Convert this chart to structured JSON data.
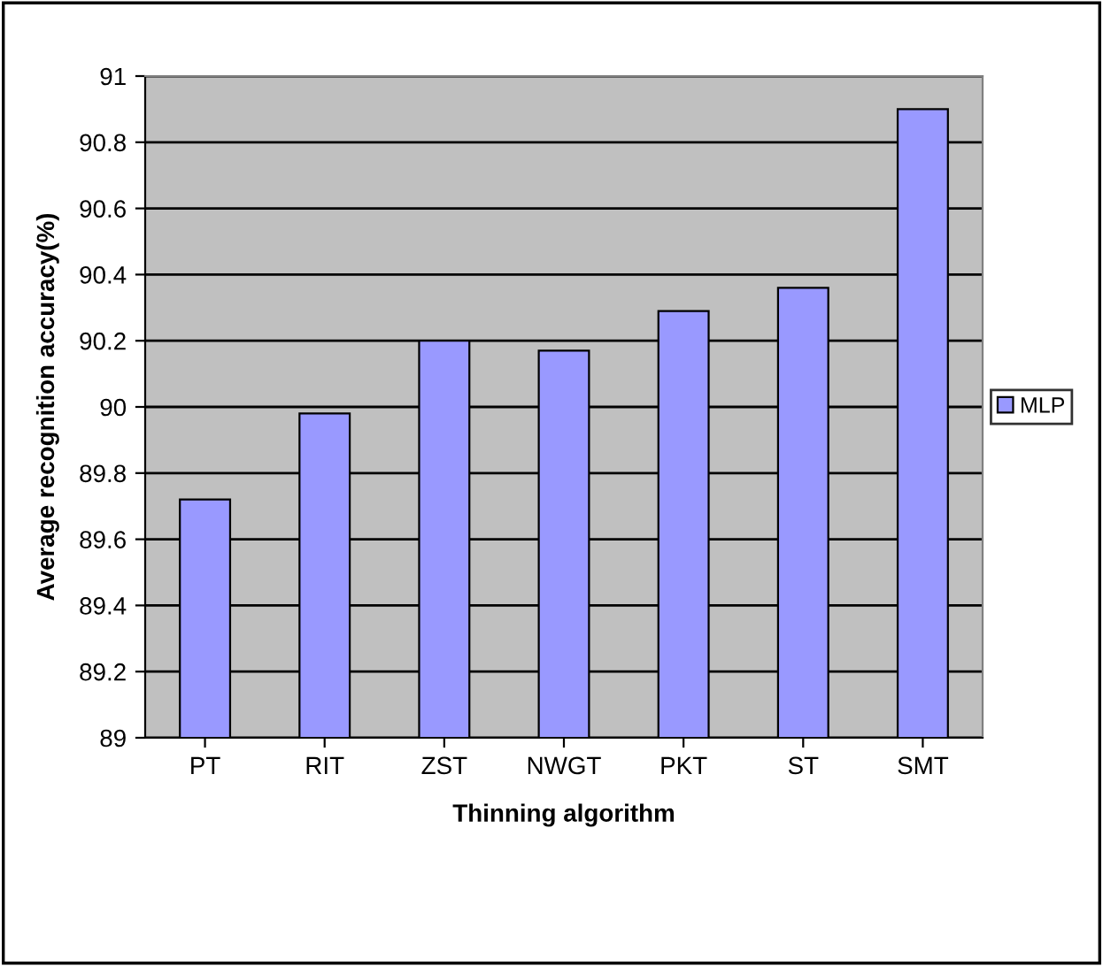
{
  "chart_data": {
    "type": "bar",
    "xlabel": "Thinning algorithm",
    "ylabel": "Average recognition accuracy(%)",
    "categories": [
      "PT",
      "RIT",
      "ZST",
      "NWGT",
      "PKT",
      "ST",
      "SMT"
    ],
    "series": [
      {
        "name": "MLP",
        "color": "#9999ff",
        "values": [
          89.72,
          89.98,
          90.2,
          90.17,
          90.29,
          90.36,
          90.9
        ]
      }
    ],
    "ylim": [
      89,
      91
    ],
    "yticks": [
      89,
      89.2,
      89.4,
      89.6,
      89.8,
      90,
      90.2,
      90.4,
      90.6,
      90.8,
      91
    ],
    "grid": "y",
    "legend": "right"
  }
}
